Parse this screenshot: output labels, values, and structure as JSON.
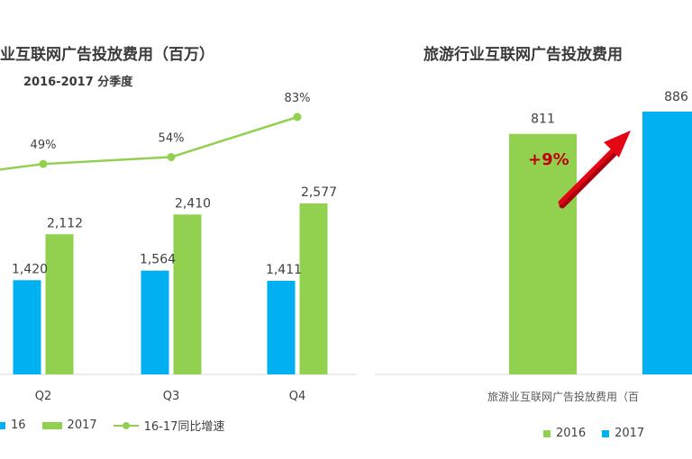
{
  "left_chart": {
    "title": "业互联网广告投放费用（百万）",
    "subtitle": "2016-2017 分季度",
    "legend": {
      "s2016": "16",
      "s2017": "2017",
      "growth": "16-17同比增速"
    }
  },
  "right_chart": {
    "title": "旅游行业互联网广告投放费用",
    "growth_label": "+9%",
    "axis_caption": "旅游业互联网广告投放费用（百",
    "legend": {
      "s2016": "2016",
      "s2017": "2017"
    }
  },
  "colors": {
    "y2016": "#00b0f0",
    "y2017": "#92d050",
    "growth_line": "#92d050",
    "arrow": "#e30613"
  },
  "chart_data": [
    {
      "type": "bar",
      "title": "业互联网广告投放费用（百万）",
      "subtitle": "2016-2017 分季度",
      "categories": [
        "Q2",
        "Q3",
        "Q4"
      ],
      "series": [
        {
          "name": "16",
          "values": [
            1420,
            1564,
            1411
          ],
          "labels": [
            "1,420",
            "1,564",
            "1,411"
          ]
        },
        {
          "name": "2017",
          "values": [
            2112,
            2410,
            2577
          ],
          "labels": [
            "2,112",
            "2,410",
            "2,577"
          ]
        }
      ],
      "line_series": {
        "name": "16-17同比增速",
        "values": [
          49,
          54,
          83
        ],
        "labels": [
          "49%",
          "54%",
          "83%"
        ],
        "unit": "%"
      },
      "ylim": [
        0,
        2900
      ],
      "grid": false,
      "legend_position": "bottom"
    },
    {
      "type": "bar",
      "title": "旅游行业互联网广告投放费用",
      "categories": [
        "2016",
        "2017"
      ],
      "values": [
        811,
        886
      ],
      "labels": [
        "811",
        "886"
      ],
      "annotation": "+9%",
      "xlabel": "旅游业互联网广告投放费用（百",
      "ylim": [
        0,
        940
      ],
      "grid": false,
      "legend_position": "bottom"
    }
  ]
}
